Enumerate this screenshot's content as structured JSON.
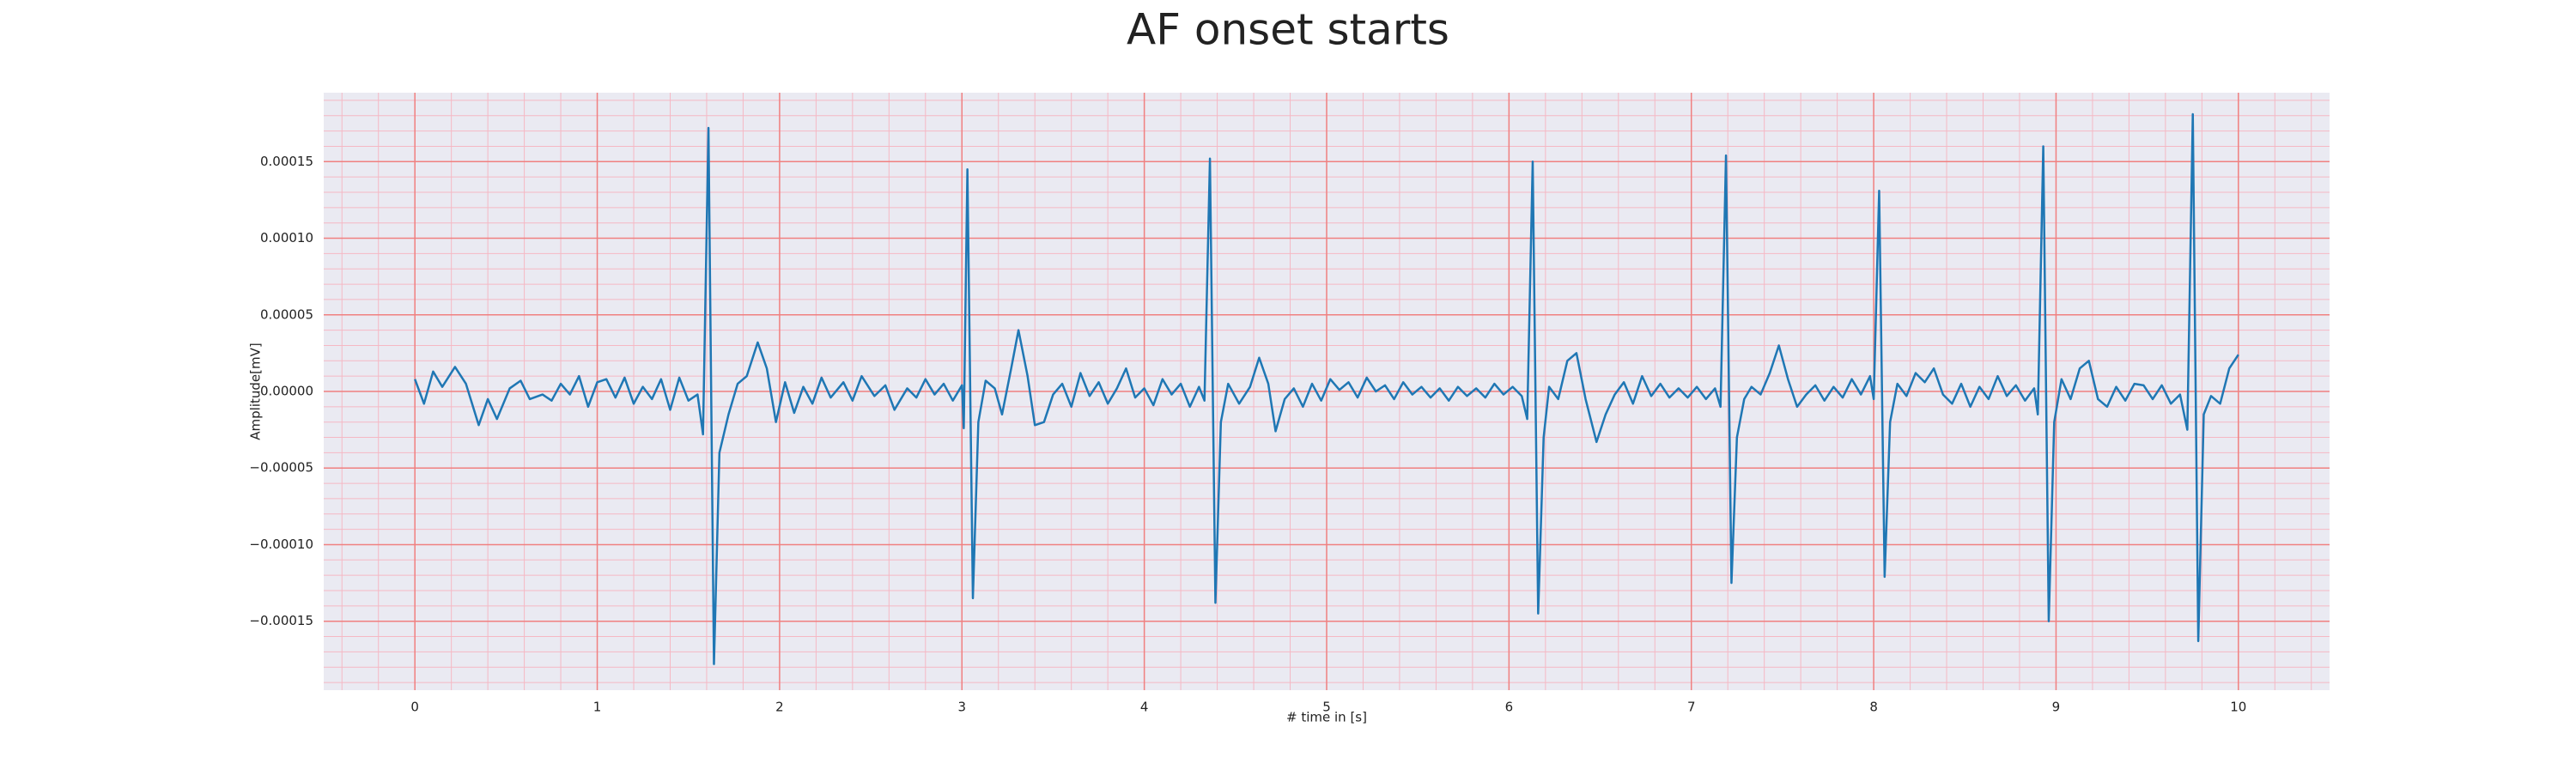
{
  "chart_data": {
    "type": "line",
    "title": "AF onset starts",
    "xlabel": "# time in [s]",
    "ylabel": "Amplitude[mV]",
    "xlim": [
      -0.5,
      10.5
    ],
    "ylim": [
      -0.000195,
      0.000195
    ],
    "xticks": [
      0,
      1,
      2,
      3,
      4,
      5,
      6,
      7,
      8,
      9,
      10
    ],
    "yticks": [
      {
        "value": -0.00015,
        "label": "−0.00015"
      },
      {
        "value": -0.0001,
        "label": "−0.00010"
      },
      {
        "value": -5e-05,
        "label": "−0.00005"
      },
      {
        "value": 0,
        "label": "0.00000"
      },
      {
        "value": 5e-05,
        "label": "0.00005"
      },
      {
        "value": 0.0001,
        "label": "0.00010"
      },
      {
        "value": 0.00015,
        "label": "0.00015"
      }
    ],
    "grid": true,
    "minor_grid": {
      "x_step": 0.2,
      "y_step": 1e-05
    },
    "background": "#eaeaf2",
    "grid_color": "#f08080",
    "minor_grid_color": "#f5b8c4",
    "x": [
      0.0,
      0.05,
      0.1,
      0.15,
      0.22,
      0.28,
      0.35,
      0.4,
      0.45,
      0.52,
      0.58,
      0.63,
      0.7,
      0.75,
      0.8,
      0.85,
      0.9,
      0.95,
      1.0,
      1.05,
      1.1,
      1.15,
      1.2,
      1.25,
      1.3,
      1.35,
      1.4,
      1.45,
      1.5,
      1.55,
      1.58,
      1.61,
      1.64,
      1.67,
      1.72,
      1.77,
      1.82,
      1.88,
      1.93,
      1.98,
      2.03,
      2.08,
      2.13,
      2.18,
      2.23,
      2.28,
      2.35,
      2.4,
      2.45,
      2.52,
      2.58,
      2.63,
      2.7,
      2.75,
      2.8,
      2.85,
      2.9,
      2.95,
      3.0,
      3.01,
      3.03,
      3.06,
      3.09,
      3.13,
      3.18,
      3.22,
      3.27,
      3.31,
      3.36,
      3.4,
      3.45,
      3.5,
      3.55,
      3.6,
      3.65,
      3.7,
      3.75,
      3.8,
      3.85,
      3.9,
      3.95,
      4.0,
      4.05,
      4.1,
      4.15,
      4.2,
      4.25,
      4.3,
      4.33,
      4.36,
      4.39,
      4.42,
      4.46,
      4.52,
      4.58,
      4.63,
      4.68,
      4.72,
      4.77,
      4.82,
      4.87,
      4.92,
      4.97,
      5.02,
      5.07,
      5.12,
      5.17,
      5.22,
      5.27,
      5.32,
      5.37,
      5.42,
      5.47,
      5.52,
      5.57,
      5.62,
      5.67,
      5.72,
      5.77,
      5.82,
      5.87,
      5.92,
      5.97,
      6.02,
      6.07,
      6.1,
      6.13,
      6.16,
      6.19,
      6.22,
      6.27,
      6.32,
      6.37,
      6.42,
      6.48,
      6.53,
      6.58,
      6.63,
      6.68,
      6.73,
      6.78,
      6.83,
      6.88,
      6.93,
      6.98,
      7.03,
      7.08,
      7.13,
      7.16,
      7.19,
      7.22,
      7.25,
      7.29,
      7.33,
      7.38,
      7.43,
      7.48,
      7.53,
      7.58,
      7.63,
      7.68,
      7.73,
      7.78,
      7.83,
      7.88,
      7.93,
      7.98,
      8.0,
      8.03,
      8.06,
      8.09,
      8.13,
      8.18,
      8.23,
      8.28,
      8.33,
      8.38,
      8.43,
      8.48,
      8.53,
      8.58,
      8.63,
      8.68,
      8.73,
      8.78,
      8.83,
      8.88,
      8.9,
      8.93,
      8.96,
      8.99,
      9.03,
      9.08,
      9.13,
      9.18,
      9.23,
      9.28,
      9.33,
      9.38,
      9.43,
      9.48,
      9.53,
      9.58,
      9.63,
      9.68,
      9.72,
      9.75,
      9.78,
      9.81,
      9.85,
      9.9,
      9.95,
      10.0
    ],
    "series": [
      {
        "color": "#1f77b4",
        "values": [
          8e-06,
          -8e-06,
          1.3e-05,
          3e-06,
          1.6e-05,
          5e-06,
          -2.2e-05,
          -5e-06,
          -1.8e-05,
          2e-06,
          7e-06,
          -5e-06,
          -2e-06,
          -6e-06,
          5e-06,
          -2e-06,
          1e-05,
          -1e-05,
          6e-06,
          8e-06,
          -4e-06,
          9e-06,
          -8e-06,
          3e-06,
          -5e-06,
          8e-06,
          -1.2e-05,
          9e-06,
          -6e-06,
          -2e-06,
          -2.8e-05,
          0.000172,
          -0.000178,
          -4e-05,
          -1.5e-05,
          5e-06,
          1e-05,
          3.2e-05,
          1.5e-05,
          -2e-05,
          6e-06,
          -1.4e-05,
          3e-06,
          -8e-06,
          9e-06,
          -4e-06,
          6e-06,
          -6e-06,
          1e-05,
          -3e-06,
          4e-06,
          -1.2e-05,
          2e-06,
          -4e-06,
          8e-06,
          -2e-06,
          5e-06,
          -6e-06,
          4e-06,
          -2.4e-05,
          0.000145,
          -0.000135,
          -2e-05,
          7e-06,
          2e-06,
          -1.5e-05,
          1.5e-05,
          4e-05,
          1e-05,
          -2.2e-05,
          -2e-05,
          -2e-06,
          5e-06,
          -1e-05,
          1.2e-05,
          -3e-06,
          6e-06,
          -8e-06,
          2e-06,
          1.5e-05,
          -4e-06,
          2e-06,
          -9e-06,
          8e-06,
          -2e-06,
          5e-06,
          -1e-05,
          3e-06,
          -6e-06,
          0.000152,
          -0.000138,
          -2e-05,
          5e-06,
          -8e-06,
          3e-06,
          2.2e-05,
          5e-06,
          -2.6e-05,
          -5e-06,
          2e-06,
          -1e-05,
          5e-06,
          -6e-06,
          8e-06,
          1e-06,
          6e-06,
          -4e-06,
          9e-06,
          0,
          4e-06,
          -5e-06,
          6e-06,
          -2e-06,
          3e-06,
          -4e-06,
          2e-06,
          -6e-06,
          3e-06,
          -3e-06,
          2e-06,
          -4e-06,
          5e-06,
          -2e-06,
          3e-06,
          -3e-06,
          -1.8e-05,
          0.00015,
          -0.000145,
          -3e-05,
          3e-06,
          -5e-06,
          2e-05,
          2.5e-05,
          -5e-06,
          -3.3e-05,
          -1.5e-05,
          -2e-06,
          6e-06,
          -8e-06,
          1e-05,
          -3e-06,
          5e-06,
          -4e-06,
          2e-06,
          -4e-06,
          3e-06,
          -5e-06,
          2e-06,
          -1e-05,
          0.000154,
          -0.000125,
          -3e-05,
          -5e-06,
          3e-06,
          -2e-06,
          1.2e-05,
          3e-05,
          8e-06,
          -1e-05,
          -2e-06,
          4e-06,
          -6e-06,
          3e-06,
          -4e-06,
          8e-06,
          -2e-06,
          1e-05,
          -5e-06,
          0.000131,
          -0.000121,
          -2e-05,
          5e-06,
          -3e-06,
          1.2e-05,
          6e-06,
          1.5e-05,
          -2e-06,
          -8e-06,
          5e-06,
          -1e-05,
          3e-06,
          -5e-06,
          1e-05,
          -3e-06,
          4e-06,
          -6e-06,
          2e-06,
          -1.5e-05,
          0.00016,
          -0.00015,
          -2e-05,
          8e-06,
          -5e-06,
          1.5e-05,
          2e-05,
          -5e-06,
          -1e-05,
          3e-06,
          -6e-06,
          5e-06,
          4e-06,
          -5e-06,
          4e-06,
          -8e-06,
          -2e-06,
          -2.5e-05,
          0.000181,
          -0.000163,
          -1.5e-05,
          -3e-06,
          -8e-06,
          1.5e-05,
          2.4e-05
        ]
      }
    ]
  }
}
